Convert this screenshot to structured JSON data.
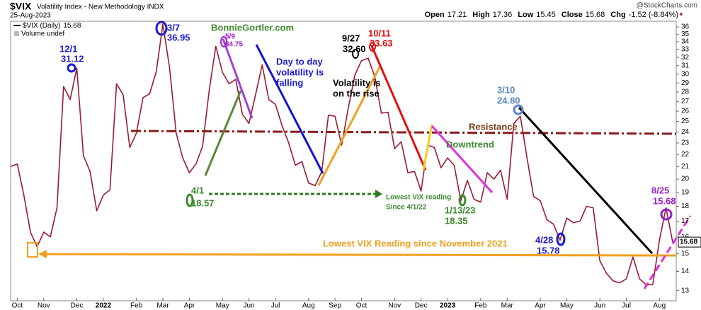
{
  "chart_data": {
    "type": "line",
    "title": "$VIX",
    "subtitle": "Volatility Index - New Methodology INDX",
    "date": "25-Aug-2023",
    "source": "@StockCharts.com",
    "ohlc": [
      {
        "label": "Open",
        "value": 17.21
      },
      {
        "label": "High",
        "value": 17.36
      },
      {
        "label": "Low",
        "value": 15.45
      },
      {
        "label": "Close",
        "value": 15.68
      },
      {
        "label": "Chg",
        "value": "-1.52 (-8.84%)"
      }
    ],
    "volume_label": "Volume undef",
    "categories": [
      null,
      "Oct",
      null,
      null,
      null,
      "Nov",
      null,
      null,
      null,
      null,
      "Dec",
      null,
      null,
      null,
      "2022",
      null,
      null,
      null,
      null,
      "Feb",
      null,
      null,
      null,
      "Mar",
      null,
      null,
      null,
      "Apr",
      null,
      null,
      null,
      null,
      "May",
      null,
      null,
      null,
      "Jun",
      null,
      null,
      null,
      "Jul",
      null,
      null,
      null,
      null,
      "Aug",
      null,
      null,
      null,
      "Sep",
      null,
      null,
      null,
      "Oct",
      null,
      null,
      null,
      null,
      "Nov",
      null,
      null,
      null,
      "Dec",
      null,
      null,
      null,
      "2023",
      null,
      null,
      null,
      null,
      "Feb",
      null,
      null,
      null,
      "Mar",
      null,
      null,
      null,
      null,
      "Apr",
      null,
      null,
      null,
      "May",
      null,
      null,
      null,
      null,
      "Jun",
      null,
      null,
      null,
      "Jul",
      null,
      null,
      null,
      null,
      "Aug",
      null,
      null
    ],
    "series": [
      {
        "name": "$VIX (Daily)",
        "color": "#9b1b30",
        "values": [
          21.0,
          21.2,
          18.8,
          16.3,
          15.4,
          16.3,
          16.0,
          17.9,
          28.6,
          27.2,
          30.7,
          21.9,
          20.6,
          17.7,
          18.8,
          19.2,
          28.9,
          27.7,
          22.6,
          23.9,
          27.4,
          27.8,
          30.3,
          36.4,
          30.8,
          23.9,
          21.7,
          20.5,
          21.2,
          22.7,
          28.2,
          33.4,
          30.2,
          28.9,
          29.4,
          25.7,
          24.8,
          27.7,
          31.1,
          27.2,
          26.7,
          24.6,
          23.0,
          21.1,
          21.4,
          19.7,
          19.5,
          20.6,
          25.6,
          25.5,
          22.8,
          26.3,
          29.9,
          31.6,
          31.9,
          29.7,
          25.8,
          25.9,
          22.5,
          23.1,
          20.5,
          20.6,
          19.1,
          22.8,
          22.6,
          20.9,
          21.7,
          21.1,
          18.4,
          19.9,
          18.5,
          18.3,
          20.5,
          20.0,
          20.7,
          18.5,
          24.8,
          25.5,
          21.7,
          18.7,
          18.4,
          17.1,
          16.8,
          15.8,
          17.2,
          16.9,
          17.0,
          18.0,
          17.9,
          14.6,
          13.9,
          13.5,
          13.4,
          13.6,
          14.8,
          13.6,
          13.3,
          13.3,
          15.8,
          17.9,
          15.68
        ]
      }
    ],
    "ylim": [
      12.5,
      36.8
    ],
    "yticks": [
      13,
      14,
      15,
      16,
      17,
      18,
      19,
      20,
      21,
      22,
      23,
      24,
      25,
      26,
      27,
      28,
      29,
      30,
      31,
      32,
      33,
      34,
      35,
      36
    ],
    "log_scale": true,
    "annotations": [
      {
        "text": "12/1",
        "color": "#1a1acc"
      },
      {
        "text": "31.12",
        "color": "#1a1acc"
      },
      {
        "text": "3/7",
        "color": "#1a1acc"
      },
      {
        "text": "36.95",
        "color": "#1a1acc"
      },
      {
        "text": "BonnieGortler.com",
        "color": "#3c8a2e"
      },
      {
        "text": "5/9",
        "color": "#9a20c8"
      },
      {
        "text": "34.75",
        "color": "#9a20c8"
      },
      {
        "text": "Day to day",
        "color": "#1a1acc"
      },
      {
        "text": "volatility is",
        "color": "#1a1acc"
      },
      {
        "text": "falling",
        "color": "#1a1acc"
      },
      {
        "text": "9/27",
        "color": "#000000"
      },
      {
        "text": "32.60",
        "color": "#000000"
      },
      {
        "text": "10/11",
        "color": "#e01010"
      },
      {
        "text": "33.63",
        "color": "#e01010"
      },
      {
        "text": "Volatility is",
        "color": "#000000"
      },
      {
        "text": "on the rise",
        "color": "#000000"
      },
      {
        "text": "3/10",
        "color": "#5a86c8"
      },
      {
        "text": "24.80",
        "color": "#5a86c8"
      },
      {
        "text": "Resistance",
        "color": "#7a3a10"
      },
      {
        "text": "Downtrend",
        "color": "#3c8a2e"
      },
      {
        "text": "4/1",
        "color": "#3c8a2e"
      },
      {
        "text": "18.57",
        "color": "#3c8a2e"
      },
      {
        "text": "Lowest VIX reading",
        "color": "#3c8a2e"
      },
      {
        "text": "Since 4/1/22",
        "color": "#3c8a2e"
      },
      {
        "text": "1/13/23",
        "color": "#3c8a2e"
      },
      {
        "text": "18.35",
        "color": "#3c8a2e"
      },
      {
        "text": "4/28",
        "color": "#1a1acc"
      },
      {
        "text": "15.78",
        "color": "#1a1acc"
      },
      {
        "text": "8/25",
        "color": "#9a20c8"
      },
      {
        "text": "15.68",
        "color": "#9a20c8"
      },
      {
        "text": "Lowest VIX Reading since November 2021",
        "color": "#f0a020"
      }
    ]
  }
}
